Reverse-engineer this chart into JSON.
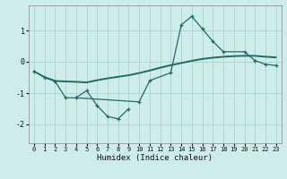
{
  "xlabel": "Humidex (Indice chaleur)",
  "bg_color": "#ceecea",
  "grid_color": "#aed8d5",
  "line_color": "#1e6b68",
  "xlim": [
    -0.5,
    23.5
  ],
  "ylim": [
    -2.6,
    1.8
  ],
  "yticks": [
    -2,
    -1,
    0,
    1
  ],
  "xticks": [
    0,
    1,
    2,
    3,
    4,
    5,
    6,
    7,
    8,
    9,
    10,
    11,
    12,
    13,
    14,
    15,
    16,
    17,
    18,
    19,
    20,
    21,
    22,
    23
  ],
  "line1": {
    "x": [
      0,
      1,
      2,
      3,
      4,
      5,
      6,
      7,
      8,
      9,
      10,
      11,
      12,
      13,
      14,
      15,
      16,
      17,
      18,
      19,
      20,
      21,
      22,
      23
    ],
    "y": [
      -0.3,
      -0.48,
      -0.6,
      -0.62,
      -0.63,
      -0.65,
      -0.58,
      -0.52,
      -0.47,
      -0.42,
      -0.35,
      -0.27,
      -0.18,
      -0.1,
      -0.03,
      0.04,
      0.1,
      0.14,
      0.17,
      0.19,
      0.2,
      0.2,
      0.17,
      0.15
    ]
  },
  "line2": {
    "x": [
      0,
      1,
      2,
      3,
      4,
      5,
      6,
      7,
      8,
      9,
      10,
      11,
      12,
      13,
      14,
      15,
      16,
      17,
      18,
      19,
      20,
      21,
      22,
      23
    ],
    "y": [
      -0.3,
      -0.5,
      -0.62,
      -0.64,
      -0.65,
      -0.67,
      -0.6,
      -0.54,
      -0.49,
      -0.44,
      -0.37,
      -0.29,
      -0.2,
      -0.12,
      -0.05,
      0.02,
      0.08,
      0.12,
      0.15,
      0.17,
      0.18,
      0.18,
      0.15,
      0.13
    ]
  },
  "line3_main": {
    "x": [
      0,
      1,
      2,
      3,
      4,
      10,
      11,
      13,
      14,
      15,
      16,
      17,
      18,
      20,
      21,
      22,
      23
    ],
    "y": [
      -0.3,
      -0.5,
      -0.62,
      -1.15,
      -1.15,
      -1.28,
      -0.6,
      -0.35,
      1.18,
      1.45,
      1.05,
      0.65,
      0.32,
      0.32,
      0.04,
      -0.08,
      -0.12
    ]
  },
  "line3_branch": {
    "x": [
      4,
      5,
      6,
      7,
      8,
      9
    ],
    "y": [
      -1.15,
      -0.92,
      -1.4,
      -1.75,
      -1.82,
      -1.5
    ]
  }
}
